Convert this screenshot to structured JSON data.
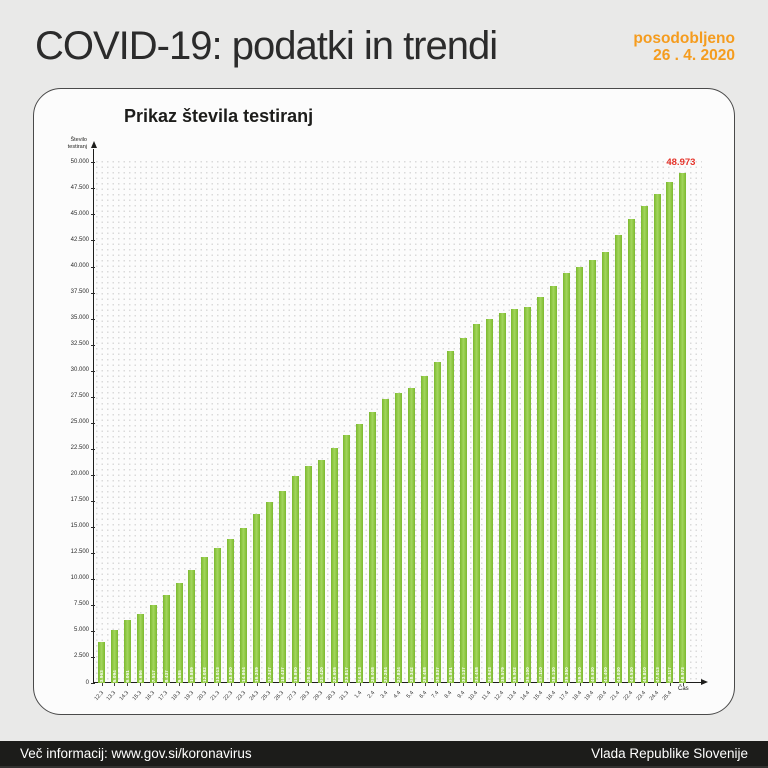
{
  "header": {
    "title": "COVID-19: podatki in trendi",
    "updated_label": "posodobljeno",
    "updated_date": "26 . 4. 2020"
  },
  "chart_data": {
    "type": "bar",
    "title": "Prikaz števila testiranj",
    "ylabel": "Število testiranj",
    "xlabel": "Čas",
    "ylim": [
      0,
      50000
    ],
    "ytick_step": 2500,
    "grid": "dotted",
    "bar_color": "#8cc63f",
    "annotation": {
      "text": "48.973",
      "color": "#e5332a",
      "bar_index": 45
    },
    "categories": [
      "12.3",
      "13.3",
      "14.3",
      "15.3",
      "16.3",
      "17.3",
      "18.3",
      "19.3",
      "20.3",
      "21.3",
      "22.3",
      "23.3",
      "24.3",
      "25.3",
      "26.3",
      "27.3",
      "28.3",
      "29.3",
      "30.3",
      "31.3",
      "1.4",
      "2.4",
      "3.4",
      "4.4",
      "5.4",
      "6.4",
      "7.4",
      "8.4",
      "9.4",
      "10.4",
      "11.4",
      "12.4",
      "13.4",
      "14.4",
      "15.4",
      "16.4",
      "17.4",
      "18.4",
      "19.4",
      "20.4",
      "21.4",
      "22.4",
      "23.4",
      "24.4",
      "25.4",
      ""
    ],
    "values": [
      3963,
      5094,
      6061,
      6656,
      7517,
      8437,
      9585,
      10889,
      12082,
      13013,
      13800,
      14864,
      16259,
      17347,
      18437,
      19890,
      20874,
      21420,
      22605,
      23817,
      24913,
      26008,
      27284,
      27834,
      28342,
      29488,
      30837,
      31891,
      33137,
      34458,
      34943,
      35579,
      35902,
      36100,
      37110,
      38130,
      39350,
      39960,
      40630,
      41400,
      43030,
      44530,
      45810,
      47013,
      48117,
      48973
    ]
  },
  "footer": {
    "left": "Več informacij: www.gov.si/koronavirus",
    "right": "Vlada Republike Slovenije"
  },
  "colors": {
    "page_bg": "#e9e9e8",
    "accent_orange": "#f59c1e",
    "bar_green": "#8cc63f",
    "peak_red": "#e5332a",
    "footer_bg": "#1c1c1a",
    "text_dark": "#1d1d1b"
  }
}
